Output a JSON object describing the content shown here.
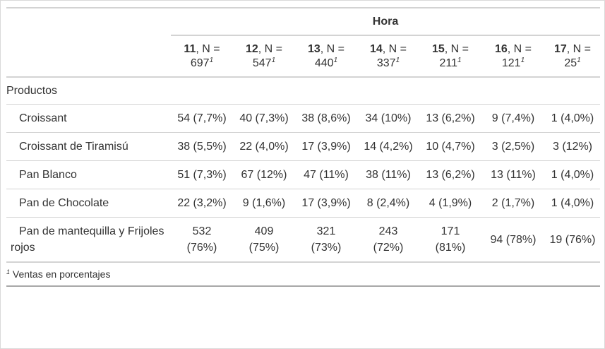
{
  "table": {
    "spanner": "Hora",
    "footnote_mark": "1",
    "columns": [
      {
        "hour": "11",
        "n_prefix": ", N =",
        "n": "697"
      },
      {
        "hour": "12",
        "n_prefix": ", N =",
        "n": "547"
      },
      {
        "hour": "13",
        "n_prefix": ", N =",
        "n": "440"
      },
      {
        "hour": "14",
        "n_prefix": ", N =",
        "n": "337"
      },
      {
        "hour": "15",
        "n_prefix": ", N =",
        "n": "211"
      },
      {
        "hour": "16",
        "n_prefix": ", N =",
        "n": "121"
      },
      {
        "hour": "17",
        "n_prefix": ", N =",
        "n": "25"
      }
    ],
    "group_label": "Productos",
    "rows": [
      {
        "label": "Croissant",
        "values": [
          "54 (7,7%)",
          "40 (7,3%)",
          "38 (8,6%)",
          "34 (10%)",
          "13 (6,2%)",
          "9 (7,4%)",
          "1 (4,0%)"
        ]
      },
      {
        "label": "Croissant de Tiramisú",
        "values": [
          "38 (5,5%)",
          "22 (4,0%)",
          "17 (3,9%)",
          "14 (4,2%)",
          "10 (4,7%)",
          "3 (2,5%)",
          "3 (12%)"
        ]
      },
      {
        "label": "Pan Blanco",
        "values": [
          "51 (7,3%)",
          "67 (12%)",
          "47 (11%)",
          "38 (11%)",
          "13 (6,2%)",
          "13 (11%)",
          "1 (4,0%)"
        ]
      },
      {
        "label": "Pan de Chocolate",
        "values": [
          "22 (3,2%)",
          "9 (1,6%)",
          "17 (3,9%)",
          "8 (2,4%)",
          "4 (1,9%)",
          "2 (1,7%)",
          "1 (4,0%)"
        ]
      },
      {
        "label": "Pan de mantequilla y Frijoles rojos",
        "values": [
          "532 (76%)",
          "409 (75%)",
          "321 (73%)",
          "243 (72%)",
          "171 (81%)",
          "94 (78%)",
          "19 (76%)"
        ]
      }
    ],
    "footnote_text": "Ventas en porcentajes"
  }
}
